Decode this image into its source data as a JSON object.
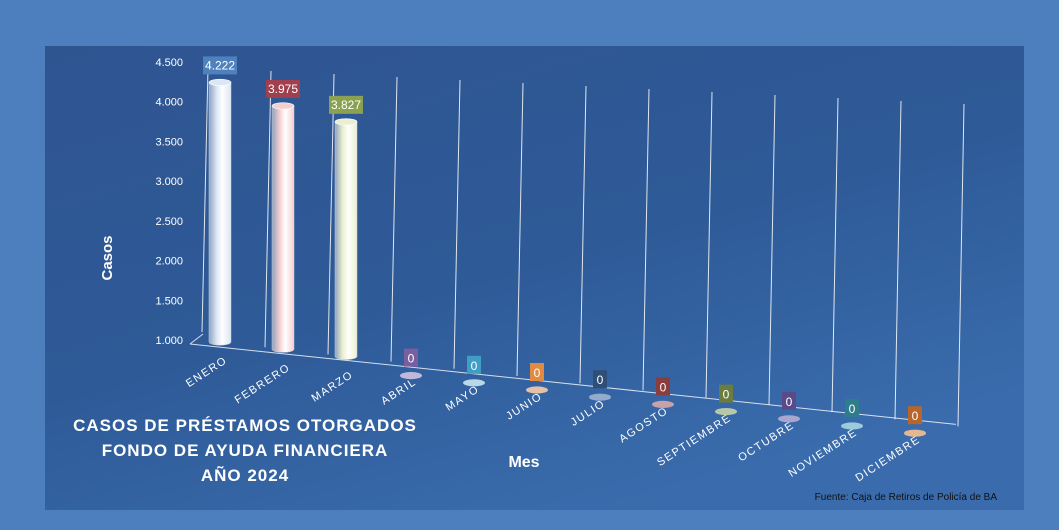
{
  "chart_data": {
    "type": "bar",
    "style": "3d-cylinder",
    "title_lines": [
      "CASOS DE PRÉSTAMOS OTORGADOS",
      "FONDO DE AYUDA FINANCIERA",
      "AÑO 2024"
    ],
    "xlabel": "Mes",
    "ylabel": "Casos",
    "source": "Fuente: Caja de Retiros de Policía de BA",
    "ylim": [
      1000,
      4500
    ],
    "y_ticks": [
      "1.000",
      "1.500",
      "2.000",
      "2.500",
      "3.000",
      "3.500",
      "4.000",
      "4.500"
    ],
    "categories": [
      "ENERO",
      "FEBRERO",
      "MARZO",
      "ABRIL",
      "MAYO",
      "JUNIO",
      "JULIO",
      "AGOSTO",
      "SEPTIEMBRE",
      "OCTUBRE",
      "NOVIEMBRE",
      "DICIEMBRE"
    ],
    "values": [
      4222,
      3975,
      3827,
      0,
      0,
      0,
      0,
      0,
      0,
      0,
      0,
      0
    ],
    "value_labels": [
      "4.222",
      "3.975",
      "3.827",
      "0",
      "0",
      "0",
      "0",
      "0",
      "0",
      "0",
      "0",
      "0"
    ],
    "bar_colors": [
      "#dce6f5",
      "#f5cfcf",
      "#eaf0cf",
      "#cfc2e0",
      "#c6e6f0",
      "#f8cca7",
      "#9fb4d0",
      "#d7a8a8",
      "#c5d3a8",
      "#b5aed3",
      "#a6d6e0",
      "#f5c08f"
    ],
    "label_colors": [
      "#4f81bd",
      "#a0404e",
      "#8aa152",
      "#7a5ea0",
      "#3f9ec4",
      "#e08a42",
      "#2f4f78",
      "#8a3d3d",
      "#6a7d3f",
      "#5b4a8a",
      "#2e7d8a",
      "#b8652a"
    ],
    "grid": true,
    "legend": "none"
  }
}
